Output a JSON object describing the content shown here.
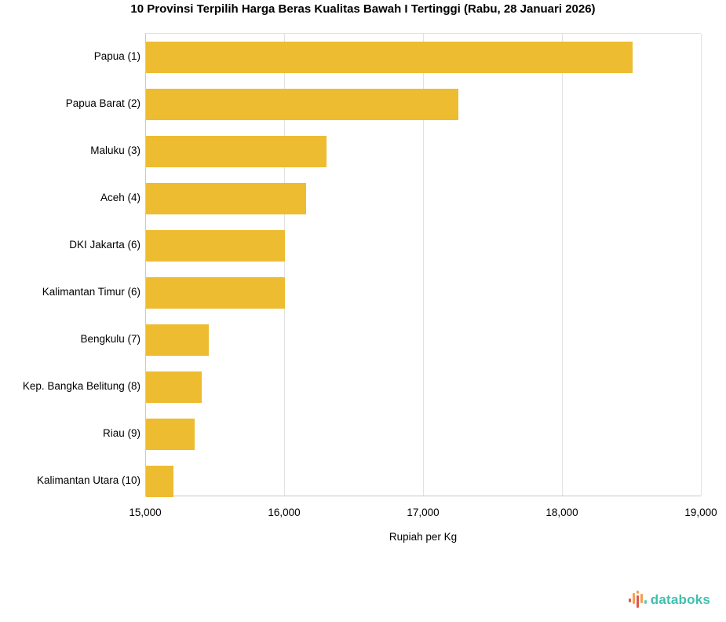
{
  "title": "10 Provinsi Terpilih Harga Beras Kualitas Bawah I Tertinggi (Rabu, 28 Januari 2026)",
  "chart_data": {
    "type": "bar",
    "orientation": "horizontal",
    "title": "10 Provinsi Terpilih Harga Beras Kualitas Bawah I Tertinggi (Rabu, 28 Januari 2026)",
    "categories": [
      "Papua (1)",
      "Papua Barat (2)",
      "Maluku (3)",
      "Aceh (4)",
      "DKI Jakarta (6)",
      "Kalimantan Timur (6)",
      "Bengkulu (7)",
      "Kep. Bangka Belitung (8)",
      "Riau (9)",
      "Kalimantan Utara (10)"
    ],
    "values": [
      18500,
      17250,
      16300,
      16150,
      16000,
      16000,
      15450,
      15400,
      15350,
      15200
    ],
    "xlabel": "Rupiah per Kg",
    "ylabel": "",
    "xlim": [
      15000,
      19000
    ],
    "xticks": [
      15000,
      16000,
      17000,
      18000,
      19000
    ],
    "xtick_labels": [
      "15,000",
      "16,000",
      "17,000",
      "18,000",
      "19,000"
    ],
    "bar_color": "#edbc31",
    "grid": true,
    "legend": false
  },
  "brand": {
    "name": "databoks",
    "text_color": "#40bfae",
    "icon_colors": {
      "red": "#e2574c",
      "orange": "#f4a04c",
      "teal": "#67c6bd"
    }
  }
}
